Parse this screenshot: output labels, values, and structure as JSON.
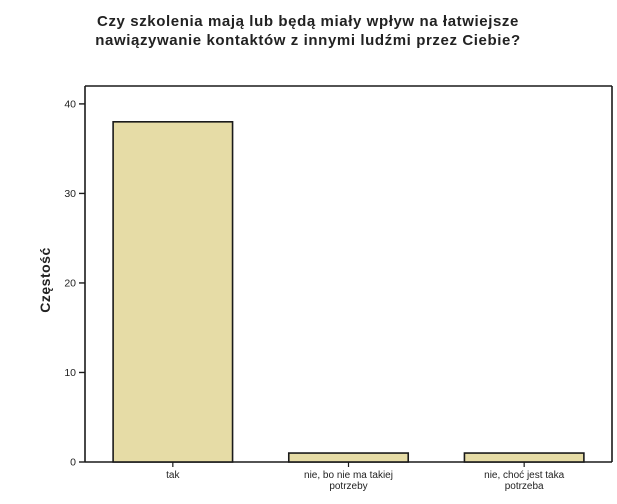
{
  "chart_data": {
    "type": "bar",
    "title_lines": [
      "Czy szkolenia mają lub będą miały wpływ na łatwiejsze",
      "nawiązywanie kontaktów z innymi ludźmi przez Ciebie?"
    ],
    "xlabel": "",
    "ylabel": "Częstość",
    "categories": [
      [
        "tak"
      ],
      [
        "nie, bo nie ma takiej",
        "potrzeby"
      ],
      [
        "nie, choć jest taka",
        "potrzeba"
      ]
    ],
    "values": [
      38,
      1,
      1
    ],
    "ylim": [
      0,
      42
    ],
    "yticks": [
      0,
      10,
      20,
      30,
      40
    ],
    "grid": false,
    "colors": {
      "bar_fill": "#E6DCA6",
      "bar_stroke": "#1a1a1a",
      "axis": "#1a1a1a",
      "background": "#ffffff"
    }
  }
}
